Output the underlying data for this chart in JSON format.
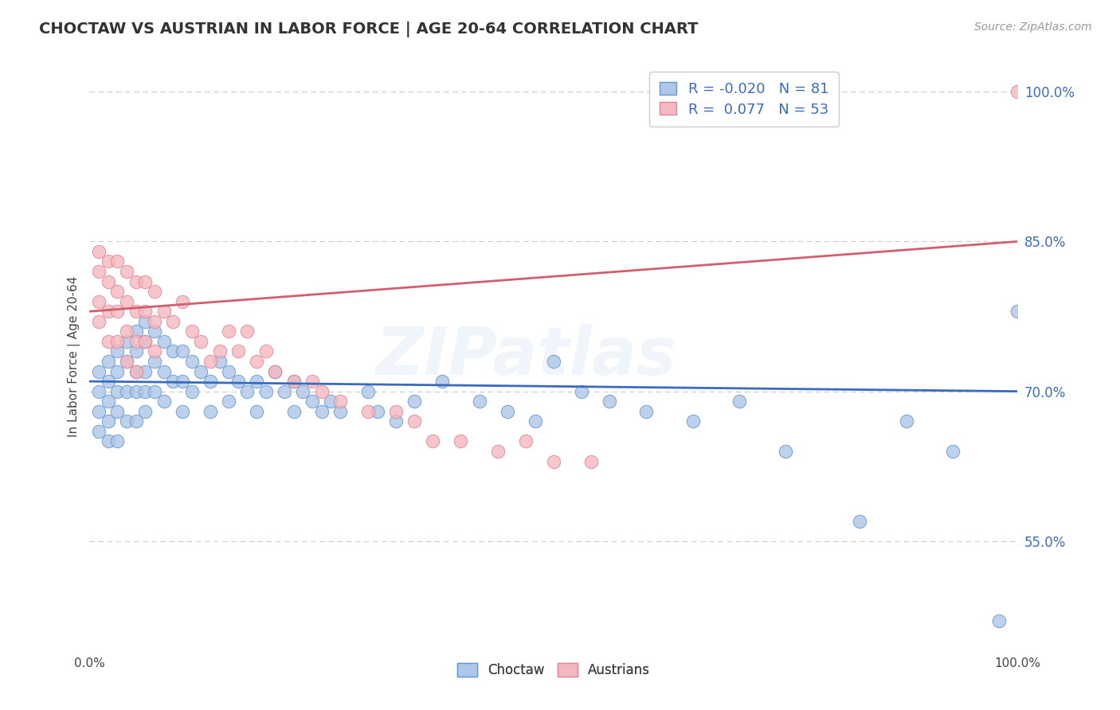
{
  "title": "CHOCTAW VS AUSTRIAN IN LABOR FORCE | AGE 20-64 CORRELATION CHART",
  "source_text": "Source: ZipAtlas.com",
  "ylabel": "In Labor Force | Age 20-64",
  "xlim": [
    0.0,
    1.0
  ],
  "ylim": [
    0.44,
    1.03
  ],
  "yticks": [
    0.55,
    0.7,
    0.85,
    1.0
  ],
  "ytick_labels": [
    "55.0%",
    "70.0%",
    "85.0%",
    "100.0%"
  ],
  "grid_color": "#cccccc",
  "background_color": "#ffffff",
  "choctaw_color": "#aec6e8",
  "choctaw_edge_color": "#6699cc",
  "austrians_color": "#f4b8c0",
  "austrians_edge_color": "#dd8899",
  "choctaw_R": -0.02,
  "choctaw_N": 81,
  "austrians_R": 0.077,
  "austrians_N": 53,
  "choctaw_line_color": "#3a6bbf",
  "austrians_line_color": "#d06070",
  "watermark": "ZIPatlas",
  "choctaw_line_y0": 0.71,
  "choctaw_line_y1": 0.7,
  "austrians_line_y0": 0.78,
  "austrians_line_y1": 0.85,
  "choctaw_x": [
    0.01,
    0.01,
    0.01,
    0.01,
    0.02,
    0.02,
    0.02,
    0.02,
    0.02,
    0.03,
    0.03,
    0.03,
    0.03,
    0.03,
    0.04,
    0.04,
    0.04,
    0.04,
    0.05,
    0.05,
    0.05,
    0.05,
    0.05,
    0.06,
    0.06,
    0.06,
    0.06,
    0.06,
    0.07,
    0.07,
    0.07,
    0.08,
    0.08,
    0.08,
    0.09,
    0.09,
    0.1,
    0.1,
    0.1,
    0.11,
    0.11,
    0.12,
    0.13,
    0.13,
    0.14,
    0.15,
    0.15,
    0.16,
    0.17,
    0.18,
    0.18,
    0.19,
    0.2,
    0.21,
    0.22,
    0.22,
    0.23,
    0.24,
    0.25,
    0.26,
    0.27,
    0.3,
    0.31,
    0.33,
    0.35,
    0.38,
    0.42,
    0.45,
    0.48,
    0.5,
    0.53,
    0.56,
    0.6,
    0.65,
    0.7,
    0.75,
    0.83,
    0.88,
    0.93,
    0.98,
    1.0
  ],
  "choctaw_y": [
    0.72,
    0.7,
    0.68,
    0.66,
    0.73,
    0.71,
    0.69,
    0.67,
    0.65,
    0.74,
    0.72,
    0.7,
    0.68,
    0.65,
    0.75,
    0.73,
    0.7,
    0.67,
    0.76,
    0.74,
    0.72,
    0.7,
    0.67,
    0.77,
    0.75,
    0.72,
    0.7,
    0.68,
    0.76,
    0.73,
    0.7,
    0.75,
    0.72,
    0.69,
    0.74,
    0.71,
    0.74,
    0.71,
    0.68,
    0.73,
    0.7,
    0.72,
    0.71,
    0.68,
    0.73,
    0.72,
    0.69,
    0.71,
    0.7,
    0.71,
    0.68,
    0.7,
    0.72,
    0.7,
    0.71,
    0.68,
    0.7,
    0.69,
    0.68,
    0.69,
    0.68,
    0.7,
    0.68,
    0.67,
    0.69,
    0.71,
    0.69,
    0.68,
    0.67,
    0.73,
    0.7,
    0.69,
    0.68,
    0.67,
    0.69,
    0.64,
    0.57,
    0.67,
    0.64,
    0.47,
    0.78
  ],
  "austrians_x": [
    0.01,
    0.01,
    0.01,
    0.01,
    0.02,
    0.02,
    0.02,
    0.02,
    0.03,
    0.03,
    0.03,
    0.03,
    0.04,
    0.04,
    0.04,
    0.04,
    0.05,
    0.05,
    0.05,
    0.05,
    0.06,
    0.06,
    0.06,
    0.07,
    0.07,
    0.07,
    0.08,
    0.09,
    0.1,
    0.11,
    0.12,
    0.13,
    0.14,
    0.15,
    0.16,
    0.17,
    0.18,
    0.19,
    0.2,
    0.22,
    0.24,
    0.25,
    0.27,
    0.3,
    0.33,
    0.35,
    0.37,
    0.4,
    0.44,
    0.47,
    0.5,
    0.54,
    1.0
  ],
  "austrians_y": [
    0.84,
    0.82,
    0.79,
    0.77,
    0.83,
    0.81,
    0.78,
    0.75,
    0.83,
    0.8,
    0.78,
    0.75,
    0.82,
    0.79,
    0.76,
    0.73,
    0.81,
    0.78,
    0.75,
    0.72,
    0.81,
    0.78,
    0.75,
    0.8,
    0.77,
    0.74,
    0.78,
    0.77,
    0.79,
    0.76,
    0.75,
    0.73,
    0.74,
    0.76,
    0.74,
    0.76,
    0.73,
    0.74,
    0.72,
    0.71,
    0.71,
    0.7,
    0.69,
    0.68,
    0.68,
    0.67,
    0.65,
    0.65,
    0.64,
    0.65,
    0.63,
    0.63,
    1.0
  ]
}
